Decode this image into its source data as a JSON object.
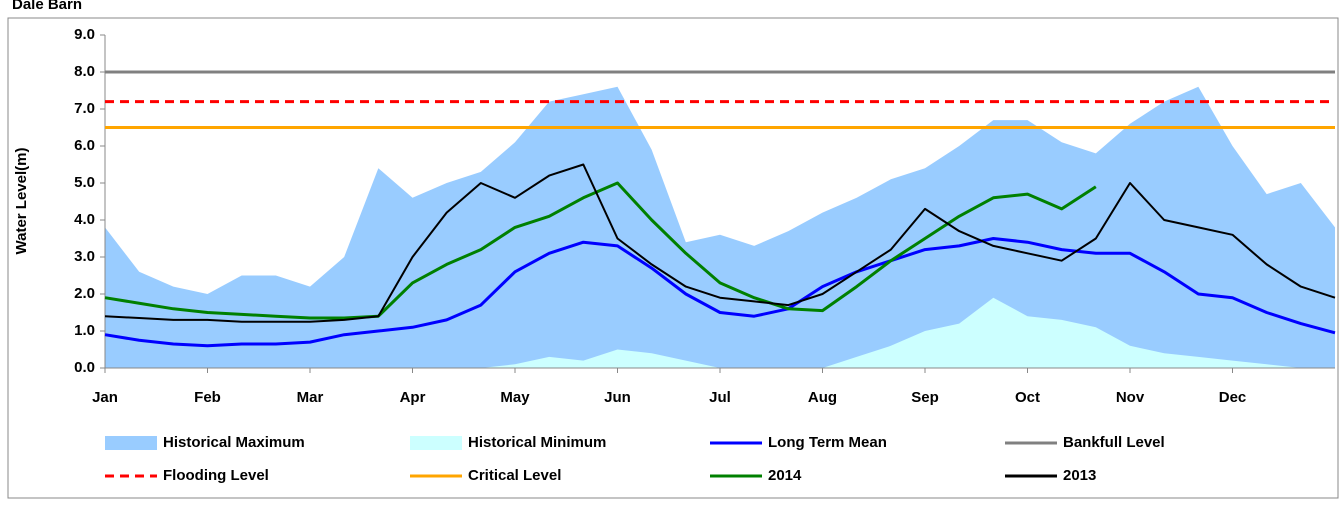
{
  "chart_data": {
    "type": "line",
    "title": "Dale Barn",
    "y_label": "Water Level(m)",
    "categories": [
      "Jan",
      null,
      null,
      "Feb",
      null,
      null,
      "Mar",
      null,
      null,
      "Apr",
      null,
      null,
      "May",
      null,
      null,
      "Jun",
      null,
      null,
      "Jul",
      null,
      null,
      "Aug",
      null,
      null,
      "Sep",
      null,
      null,
      "Oct",
      null,
      null,
      "Nov",
      null,
      null,
      "Dec",
      null,
      null,
      null
    ],
    "ylim": [
      0,
      9
    ],
    "yticks": [
      {
        "value": 0,
        "label": "0.0"
      },
      {
        "value": 1,
        "label": "1.0"
      },
      {
        "value": 2,
        "label": "2.0"
      },
      {
        "value": 3,
        "label": "3.0"
      },
      {
        "value": 4,
        "label": "4.0"
      },
      {
        "value": 5,
        "label": "5.0"
      },
      {
        "value": 6,
        "label": "6.0"
      },
      {
        "value": 7,
        "label": "7.0"
      },
      {
        "value": 8,
        "label": "8.0"
      },
      {
        "value": 9,
        "label": "9.0"
      }
    ],
    "series": [
      {
        "name": "Historical Maximum",
        "kind": "area",
        "color": "#99ccff",
        "values": [
          3.8,
          2.6,
          2.2,
          2.0,
          2.5,
          2.5,
          2.2,
          3.0,
          5.4,
          4.6,
          5.0,
          5.3,
          6.1,
          7.2,
          7.4,
          7.6,
          5.9,
          3.4,
          3.6,
          3.3,
          3.7,
          4.2,
          4.6,
          5.1,
          5.4,
          6.0,
          6.7,
          6.7,
          6.1,
          5.8,
          6.6,
          7.2,
          7.6,
          6.0,
          4.7,
          5.0,
          3.8
        ]
      },
      {
        "name": "Historical Minimum",
        "kind": "area",
        "color": "#ccffff",
        "values": [
          0,
          0,
          0,
          0,
          0,
          0,
          0,
          0,
          0,
          0,
          0,
          0,
          0.1,
          0.3,
          0.2,
          0.5,
          0.4,
          0.2,
          0,
          0,
          0,
          0,
          0.3,
          0.6,
          1.0,
          1.2,
          1.9,
          1.4,
          1.3,
          1.1,
          0.6,
          0.4,
          0.3,
          0.2,
          0.1,
          0,
          0
        ]
      },
      {
        "name": "Long Term Mean",
        "kind": "line",
        "color": "#0000ff",
        "values": [
          0.9,
          0.75,
          0.65,
          0.6,
          0.65,
          0.65,
          0.7,
          0.9,
          1.0,
          1.1,
          1.3,
          1.7,
          2.6,
          3.1,
          3.4,
          3.3,
          2.7,
          2.0,
          1.5,
          1.4,
          1.6,
          2.2,
          2.6,
          2.9,
          3.2,
          3.3,
          3.5,
          3.4,
          3.2,
          3.1,
          3.1,
          2.6,
          2.0,
          1.9,
          1.5,
          1.2,
          0.95
        ]
      },
      {
        "name": "Bankfull Level",
        "kind": "level",
        "color": "#808080",
        "level": 8.0
      },
      {
        "name": "Flooding Level",
        "kind": "level",
        "color": "#ff0000",
        "dash": true,
        "level": 7.2
      },
      {
        "name": "Critical Level",
        "kind": "level",
        "color": "#ffa500",
        "level": 6.5
      },
      {
        "name": "2014",
        "kind": "line",
        "color": "#008000",
        "values": [
          1.9,
          1.75,
          1.6,
          1.5,
          1.45,
          1.4,
          1.35,
          1.35,
          1.4,
          2.3,
          2.8,
          3.2,
          3.8,
          4.1,
          4.6,
          5.0,
          4.0,
          3.1,
          2.3,
          1.9,
          1.6,
          1.55,
          2.2,
          2.9,
          3.5,
          4.1,
          4.6,
          4.7,
          4.3,
          4.9,
          null,
          null,
          null,
          null,
          null,
          null,
          null
        ]
      },
      {
        "name": "2013",
        "kind": "line",
        "color": "#000000",
        "values": [
          1.4,
          1.35,
          1.3,
          1.3,
          1.25,
          1.25,
          1.25,
          1.3,
          1.4,
          3.0,
          4.2,
          5.0,
          4.6,
          5.2,
          5.5,
          3.5,
          2.8,
          2.2,
          1.9,
          1.8,
          1.7,
          2.0,
          2.6,
          3.2,
          4.3,
          3.7,
          3.3,
          3.1,
          2.9,
          3.5,
          5.0,
          4.0,
          3.8,
          3.6,
          2.8,
          2.2,
          1.9
        ]
      }
    ]
  }
}
